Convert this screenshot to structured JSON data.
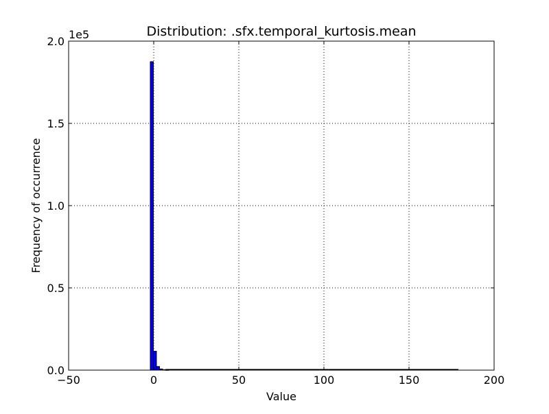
{
  "chart_data": {
    "type": "bar",
    "title": "Distribution: .sfx.temporal_kurtosis.mean",
    "xlabel": "Value",
    "ylabel": "Frequency of occurrence",
    "y_offset_label": "1e5",
    "xlim": [
      -50,
      200
    ],
    "ylim": [
      0,
      2.0
    ],
    "x_ticks": [
      -50,
      0,
      50,
      100,
      150,
      200
    ],
    "x_tick_labels": [
      "−50",
      "0",
      "50",
      "100",
      "150",
      "200"
    ],
    "y_ticks": [
      0.0,
      0.5,
      1.0,
      1.5,
      2.0
    ],
    "y_tick_labels": [
      "0.0",
      "0.5",
      "1.0",
      "1.5",
      "2.0"
    ],
    "grid": true,
    "bar_color": "#0000ff",
    "bin_width": 1.8,
    "bin_starts": [
      -2.0,
      -0.2,
      1.6,
      3.4,
      5.2,
      7.0
    ],
    "values": [
      1.875,
      0.115,
      0.022,
      0.007,
      0.003,
      0.001
    ],
    "tail_range": [
      7.0,
      179.0
    ]
  }
}
